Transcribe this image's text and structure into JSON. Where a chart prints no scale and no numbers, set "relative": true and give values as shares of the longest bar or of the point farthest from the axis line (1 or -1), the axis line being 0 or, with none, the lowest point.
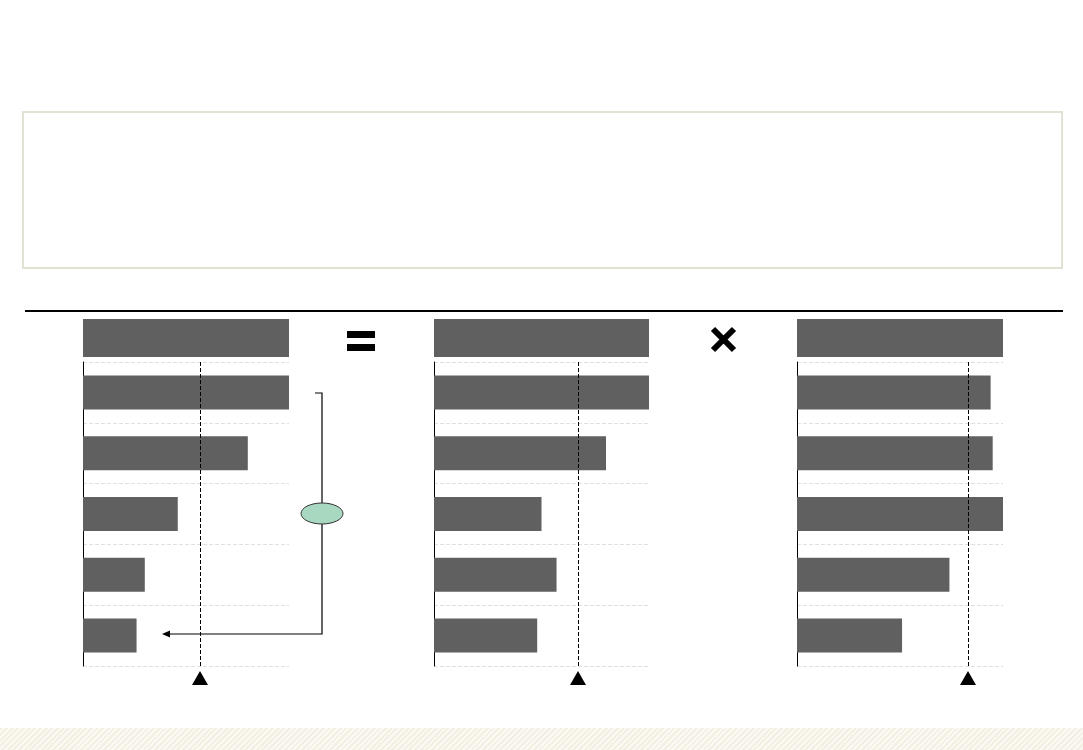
{
  "chart_data": [
    {
      "type": "bar",
      "orientation": "horizontal",
      "relative": true,
      "categories": [
        null,
        null,
        null,
        null,
        null
      ],
      "values": [
        1,
        0.8,
        0.46,
        0.3,
        0.26
      ],
      "color": "#606060",
      "grid": "y",
      "ref_lines": [
        {
          "axis": "x",
          "value": 0.57,
          "color": "#000000",
          "line_style": "dashed"
        }
      ]
    },
    {
      "type": "bar",
      "orientation": "horizontal",
      "relative": true,
      "categories": [
        null,
        null,
        null,
        null,
        null
      ],
      "values": [
        1,
        0.8,
        0.5,
        0.57,
        0.48
      ],
      "color": "#606060",
      "grid": "y",
      "ref_lines": [
        {
          "axis": "x",
          "value": 0.67,
          "color": "#000000",
          "line_style": "dashed"
        }
      ]
    },
    {
      "type": "bar",
      "orientation": "horizontal",
      "relative": true,
      "categories": [
        null,
        null,
        null,
        null,
        null
      ],
      "values": [
        0.94,
        0.95,
        1,
        0.74,
        0.51
      ],
      "color": "#606060",
      "grid": "y",
      "ref_lines": [
        {
          "axis": "x",
          "value": 0.83,
          "color": "#000000",
          "line_style": "dashed"
        }
      ]
    }
  ]
}
